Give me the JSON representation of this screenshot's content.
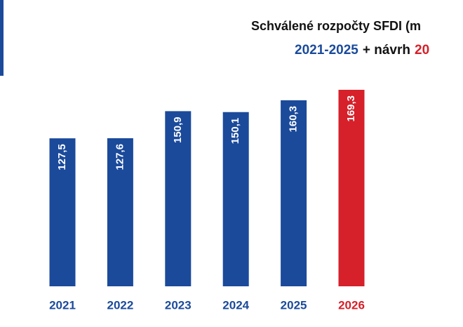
{
  "chart_data": {
    "type": "bar",
    "title": "Schválené rozpočty SFDI (m",
    "subtitle": [
      {
        "text": "2021-2025",
        "color": "#1b4a9b"
      },
      {
        "text": "+ návrh",
        "color": "#111111"
      },
      {
        "text": "20",
        "color": "#d6202a"
      }
    ],
    "categories": [
      "2021",
      "2022",
      "2023",
      "2024",
      "2025",
      "2026"
    ],
    "values": [
      127.5,
      127.6,
      150.9,
      150.1,
      160.3,
      169.3
    ],
    "value_labels": [
      "127,5",
      "127,6",
      "150,9",
      "150,1",
      "160,3",
      "169,3"
    ],
    "colors": [
      "#1b4a9b",
      "#1b4a9b",
      "#1b4a9b",
      "#1b4a9b",
      "#1b4a9b",
      "#d6202a"
    ]
  }
}
